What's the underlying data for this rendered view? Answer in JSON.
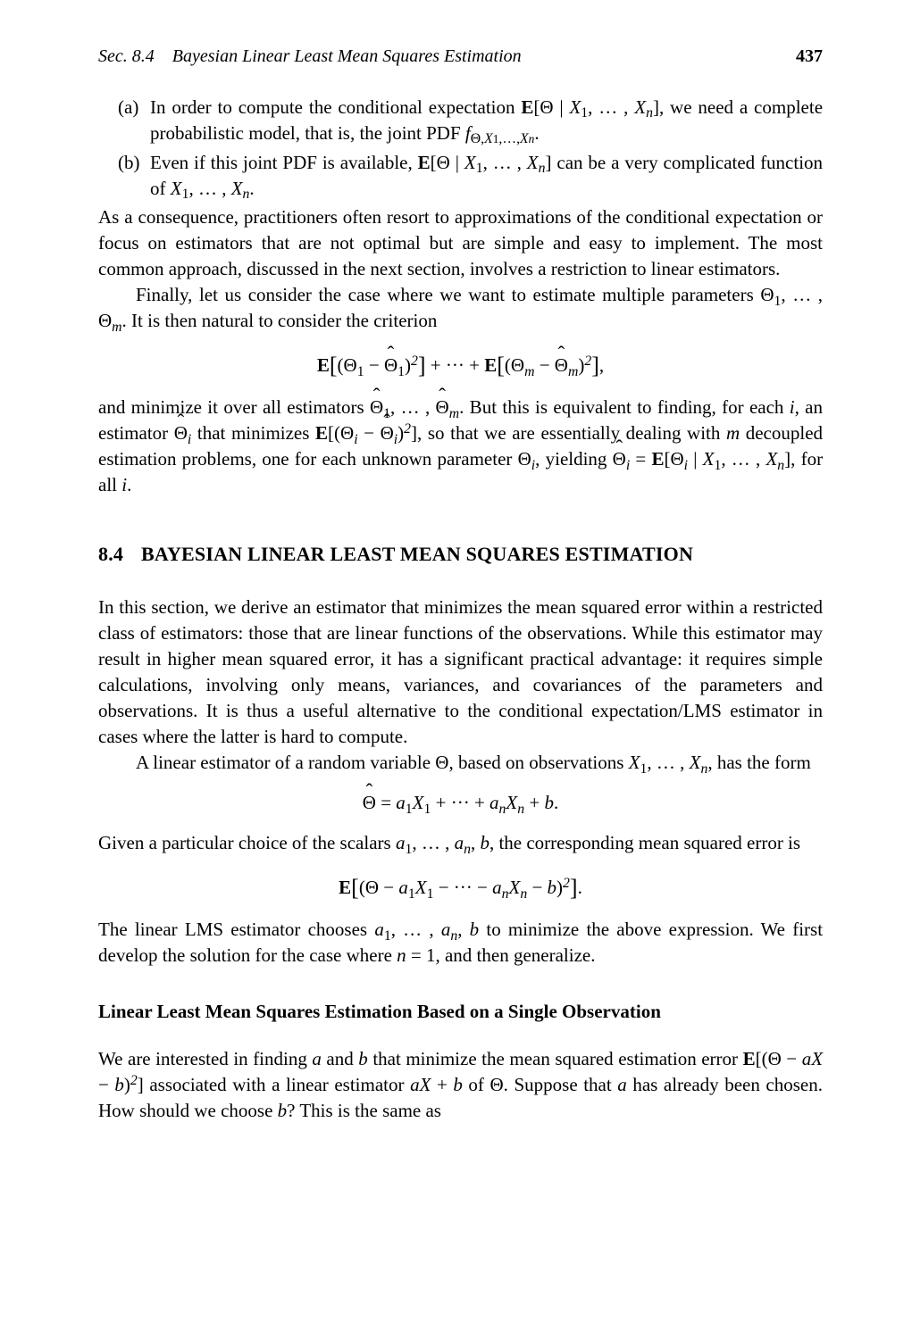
{
  "header": {
    "left": "Sec. 8.4 Bayesian Linear Least Mean Squares Estimation",
    "page": "437"
  },
  "list": {
    "a": {
      "marker": "(a)",
      "text_pre": "In order to compute the conditional expectation ",
      "text_post": ", we need a complete probabilistic model, that is, the joint PDF "
    },
    "b": {
      "marker": "(b)",
      "text_pre": "Even if this joint PDF is available, ",
      "text_mid": " can be a very complicated function of "
    }
  },
  "para1": "As a consequence, practitioners often resort to approximations of the conditional expectation or focus on estimators that are not optimal but are simple and easy to implement. The most common approach, discussed in the next section, involves a restriction to linear estimators.",
  "para2_pre": "Finally, let us consider the case where we want to estimate multiple parameters ",
  "para2_post": ". It is then natural to consider the criterion",
  "para3_pre": "and minimize it over all estimators ",
  "para3_mid1": ". But this is equivalent to finding, for each ",
  "para3_mid2": ", an estimator ",
  "para3_mid3": " that minimizes ",
  "para3_mid4": ", so that we are essentially dealing with ",
  "para3_mid5": " decoupled estimation problems, one for each unknown parameter ",
  "para3_mid6": ", yielding ",
  "para3_end": ".",
  "section": {
    "num": "8.4",
    "title": "BAYESIAN LINEAR LEAST MEAN SQUARES ESTIMATION"
  },
  "sec_p1": "In this section, we derive an estimator that minimizes the mean squared error within a restricted class of estimators: those that are linear functions of the observations. While this estimator may result in higher mean squared error, it has a significant practical advantage: it requires simple calculations, involving only means, variances, and covariances of the parameters and observations. It is thus a useful alternative to the conditional expectation/LMS estimator in cases where the latter is hard to compute.",
  "sec_p2_pre": "A linear estimator of a random variable ",
  "sec_p2_mid": ", based on observations ",
  "sec_p2_post": ", has the form",
  "sec_p3_pre": "Given a particular choice of the scalars ",
  "sec_p3_post": ", the corresponding mean squared error is",
  "sec_p4_pre": "The linear LMS estimator chooses ",
  "sec_p4_mid": " to minimize the above expression. We first develop the solution for the case where ",
  "sec_p4_post": ", and then generalize.",
  "subsection": "Linear Least Mean Squares Estimation Based on a Single Observation",
  "sub_p1_pre": "We are interested in finding ",
  "sub_p1_m1": " and ",
  "sub_p1_m2": " that minimize the mean squared estimation error ",
  "sub_p1_m3": " associated with a linear estimator ",
  "sub_p1_m4": " of ",
  "sub_p1_m5": ". Suppose that ",
  "sub_p1_m6": " has already been chosen. How should we choose ",
  "sub_p1_end": "? This is the same as",
  "sym": {
    "E": "E",
    "Theta": "Θ",
    "X": "X",
    "f": "f",
    "a": "a",
    "b": "b",
    "m_var": "m",
    "n_var": "n",
    "i_var": "i",
    "one": "1",
    "n_eq_1": "n = 1",
    "for_all_i": ", for all "
  }
}
